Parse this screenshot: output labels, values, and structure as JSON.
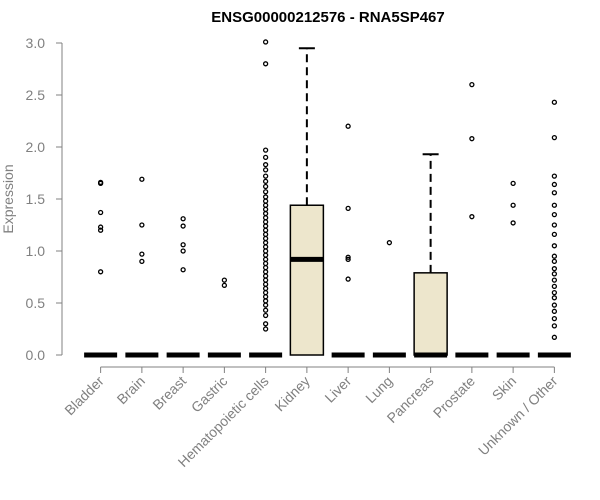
{
  "chart_data": {
    "type": "box",
    "title": "ENSG00000212576 - RNA5SP467",
    "xlabel": "",
    "ylabel": "Expression",
    "ylim": [
      0,
      3.0
    ],
    "yticks": [
      "0.0",
      "0.5",
      "1.0",
      "1.5",
      "2.0",
      "2.5",
      "3.0"
    ],
    "grid": false,
    "box_color": "#ede6cc",
    "categories": [
      "Bladder",
      "Brain",
      "Breast",
      "Gastric",
      "Hematopoietic cells",
      "Kidney",
      "Liver",
      "Lung",
      "Pancreas",
      "Prostate",
      "Skin",
      "Unknown / Other"
    ],
    "boxes": [
      {
        "q1": 0,
        "median": 0,
        "q3": 0,
        "whisker_low": 0,
        "whisker_high": 0,
        "outliers": [
          0.8,
          1.2,
          1.23,
          1.37,
          1.65,
          1.66
        ]
      },
      {
        "q1": 0,
        "median": 0,
        "q3": 0,
        "whisker_low": 0,
        "whisker_high": 0,
        "outliers": [
          0.9,
          0.97,
          1.25,
          1.69
        ]
      },
      {
        "q1": 0,
        "median": 0,
        "q3": 0,
        "whisker_low": 0,
        "whisker_high": 0,
        "outliers": [
          0.82,
          1.0,
          1.06,
          1.24,
          1.31
        ]
      },
      {
        "q1": 0,
        "median": 0,
        "q3": 0,
        "whisker_low": 0,
        "whisker_high": 0,
        "outliers": [
          0.67,
          0.72
        ]
      },
      {
        "q1": 0,
        "median": 0,
        "q3": 0,
        "whisker_low": 0,
        "whisker_high": 0,
        "outliers": [
          0.25,
          0.3,
          0.38,
          0.43,
          0.48,
          0.52,
          0.56,
          0.6,
          0.64,
          0.68,
          0.72,
          0.76,
          0.8,
          0.84,
          0.88,
          0.92,
          0.96,
          1.0,
          1.04,
          1.08,
          1.12,
          1.16,
          1.2,
          1.24,
          1.28,
          1.32,
          1.36,
          1.4,
          1.44,
          1.48,
          1.52,
          1.57,
          1.62,
          1.67,
          1.72,
          1.78,
          1.83,
          1.9,
          1.97,
          2.8,
          3.01
        ]
      },
      {
        "q1": 0,
        "median": 0.92,
        "q3": 1.44,
        "whisker_low": 0,
        "whisker_high": 2.95,
        "outliers": []
      },
      {
        "q1": 0,
        "median": 0,
        "q3": 0,
        "whisker_low": 0,
        "whisker_high": 0,
        "outliers": [
          0.73,
          0.92,
          0.94,
          1.41,
          2.2
        ]
      },
      {
        "q1": 0,
        "median": 0,
        "q3": 0,
        "whisker_low": 0,
        "whisker_high": 0,
        "outliers": [
          1.08
        ]
      },
      {
        "q1": 0,
        "median": 0,
        "q3": 0.79,
        "whisker_low": 0,
        "whisker_high": 1.93,
        "outliers": []
      },
      {
        "q1": 0,
        "median": 0,
        "q3": 0,
        "whisker_low": 0,
        "whisker_high": 0,
        "outliers": [
          1.33,
          2.08,
          2.6
        ]
      },
      {
        "q1": 0,
        "median": 0,
        "q3": 0,
        "whisker_low": 0,
        "whisker_high": 0,
        "outliers": [
          1.27,
          1.44,
          1.65
        ]
      },
      {
        "q1": 0,
        "median": 0,
        "q3": 0,
        "whisker_low": 0,
        "whisker_high": 0,
        "outliers": [
          0.17,
          0.28,
          0.35,
          0.42,
          0.48,
          0.55,
          0.6,
          0.66,
          0.72,
          0.78,
          0.83,
          0.9,
          0.95,
          1.05,
          1.16,
          1.25,
          1.35,
          1.44,
          1.56,
          1.64,
          1.72,
          2.09,
          2.43
        ]
      }
    ]
  }
}
